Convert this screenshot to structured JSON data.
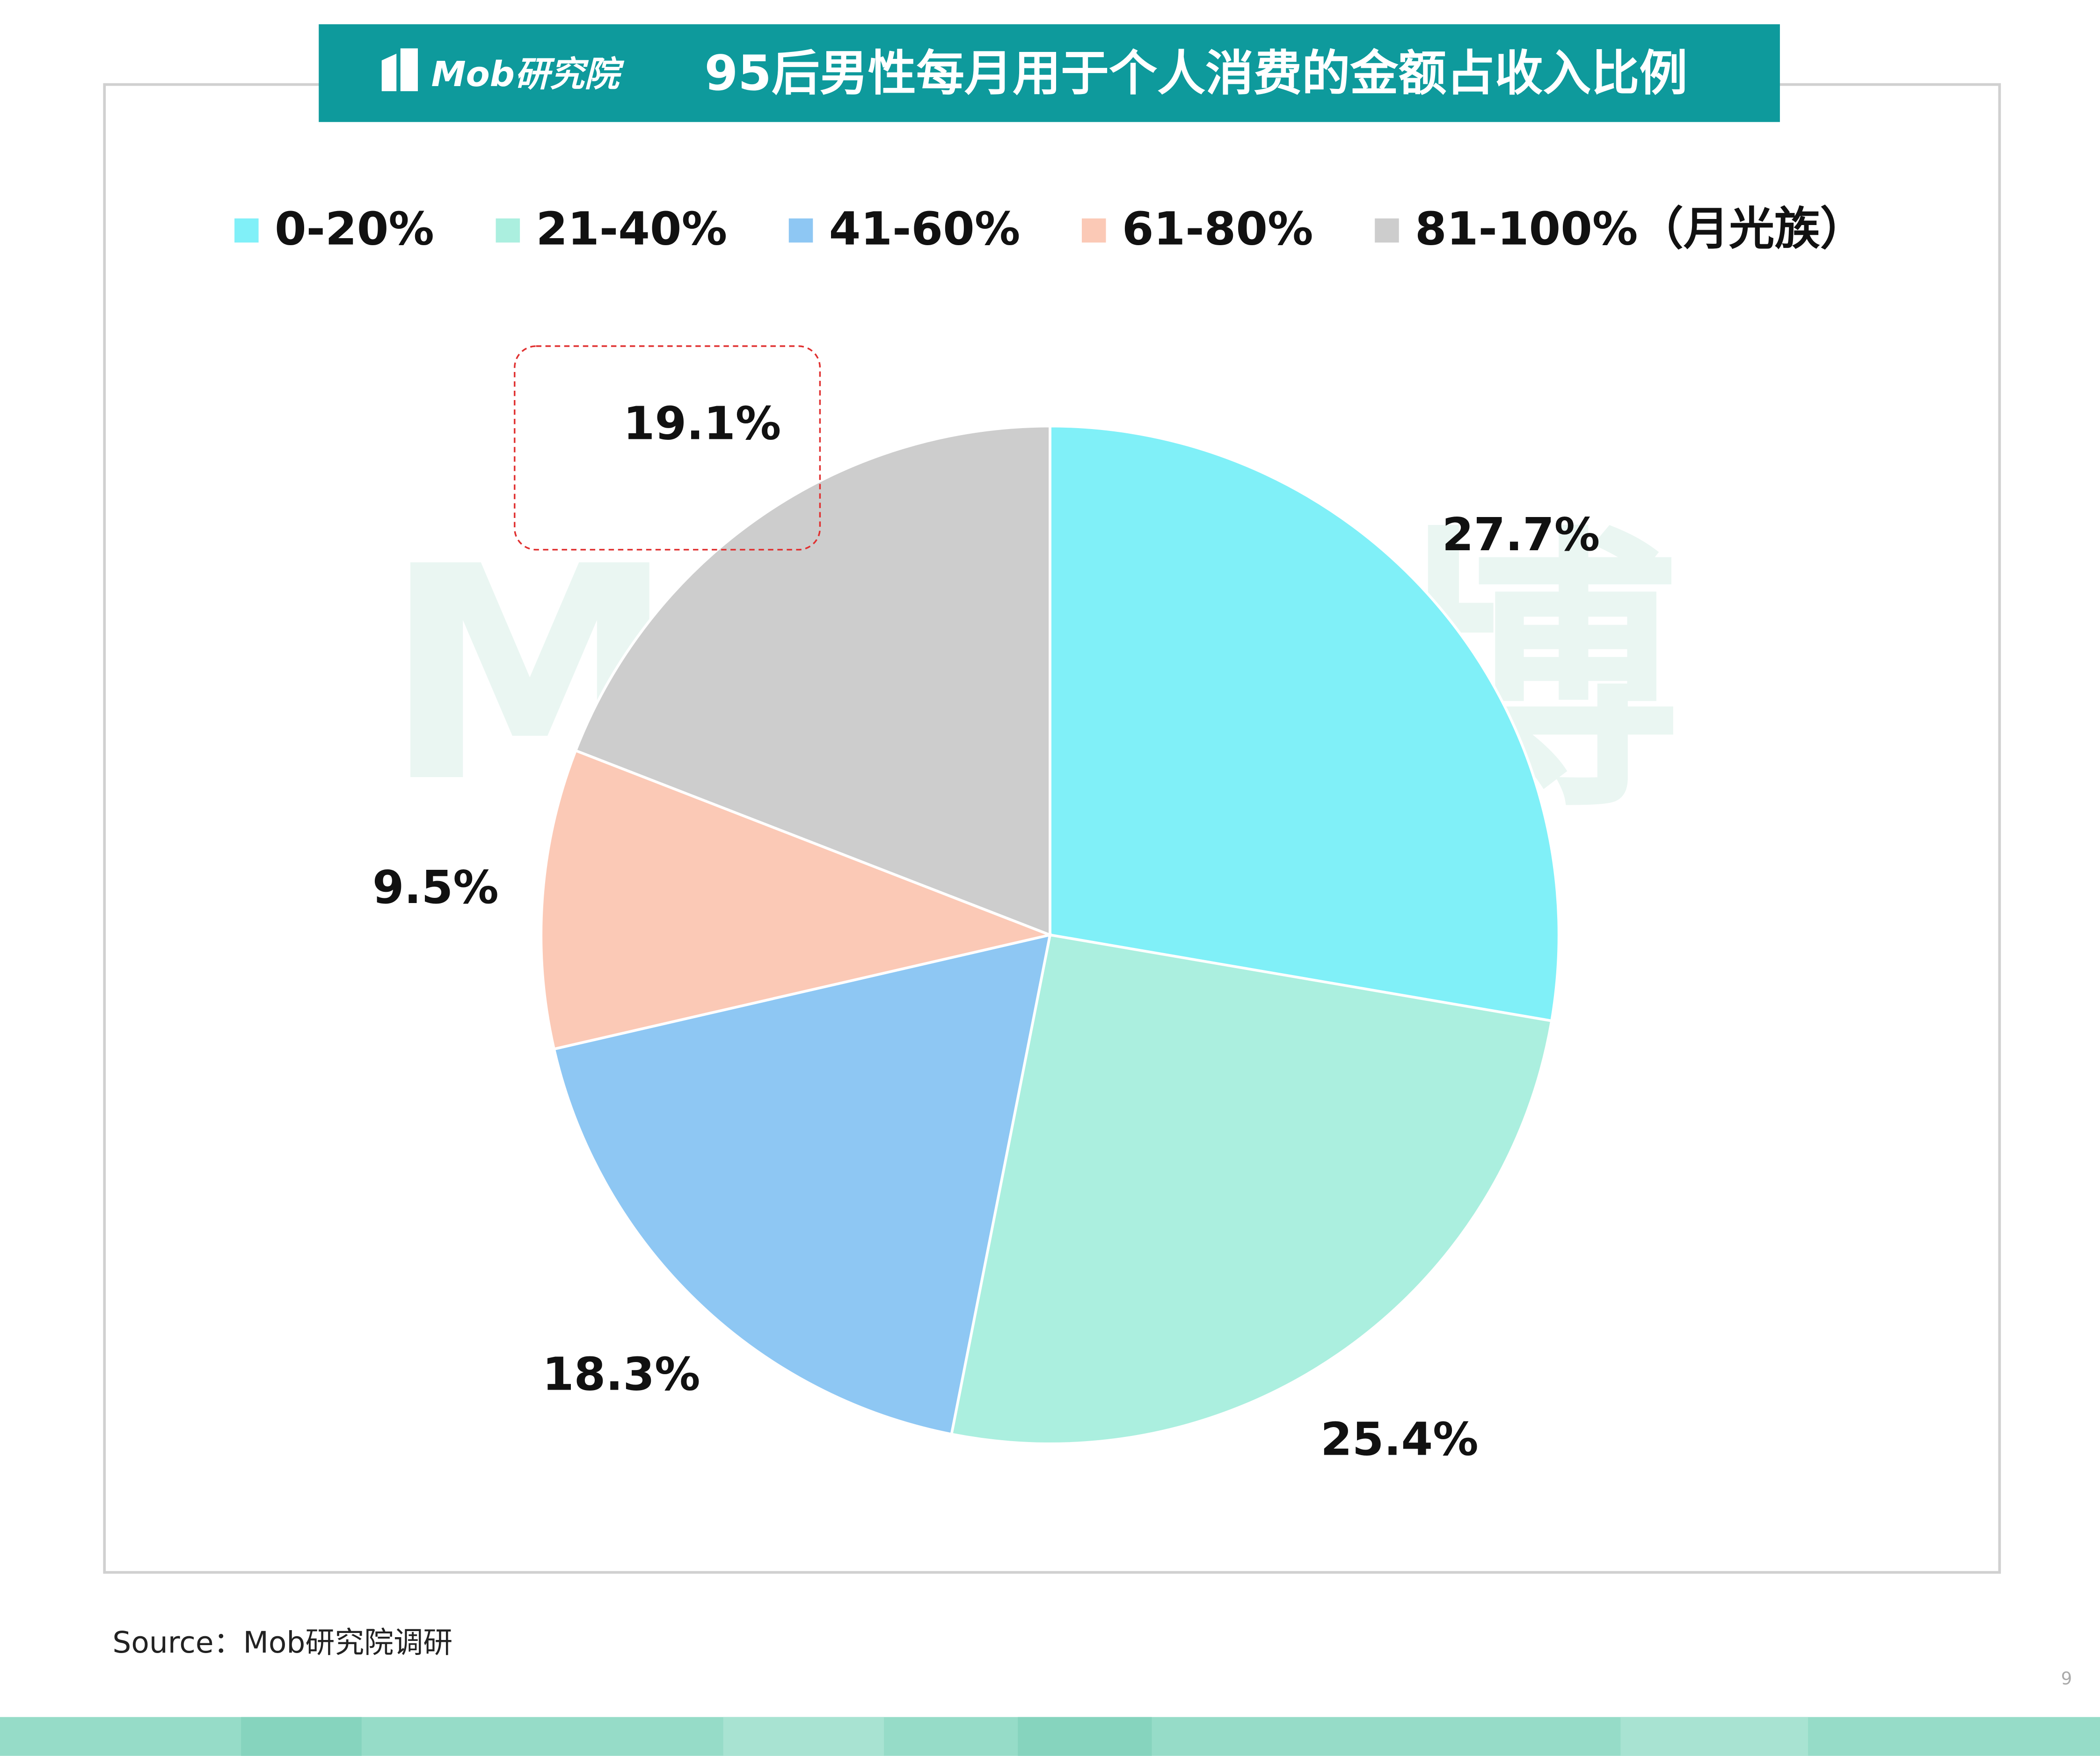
{
  "logo": "Mob研究院",
  "watermark": "Mob袤博",
  "source": "Source：Mob研究院调研",
  "page_number": "9",
  "chart_data": {
    "type": "pie",
    "title": "95后男性每月用于个人消费的金额占收入比例",
    "categories": [
      "0-20%",
      "21-40%",
      "41-60%",
      "61-80%",
      "81-100%（月光族）"
    ],
    "values": [
      27.7,
      25.4,
      18.3,
      9.5,
      19.1
    ],
    "value_labels": [
      "27.7%",
      "25.4%",
      "18.3%",
      "9.5%",
      "19.1%"
    ],
    "colors": [
      "#80F0F8",
      "#ABEFDF",
      "#8EC7F3",
      "#FBC9B6",
      "#CDCDCD"
    ],
    "legend": "top"
  }
}
